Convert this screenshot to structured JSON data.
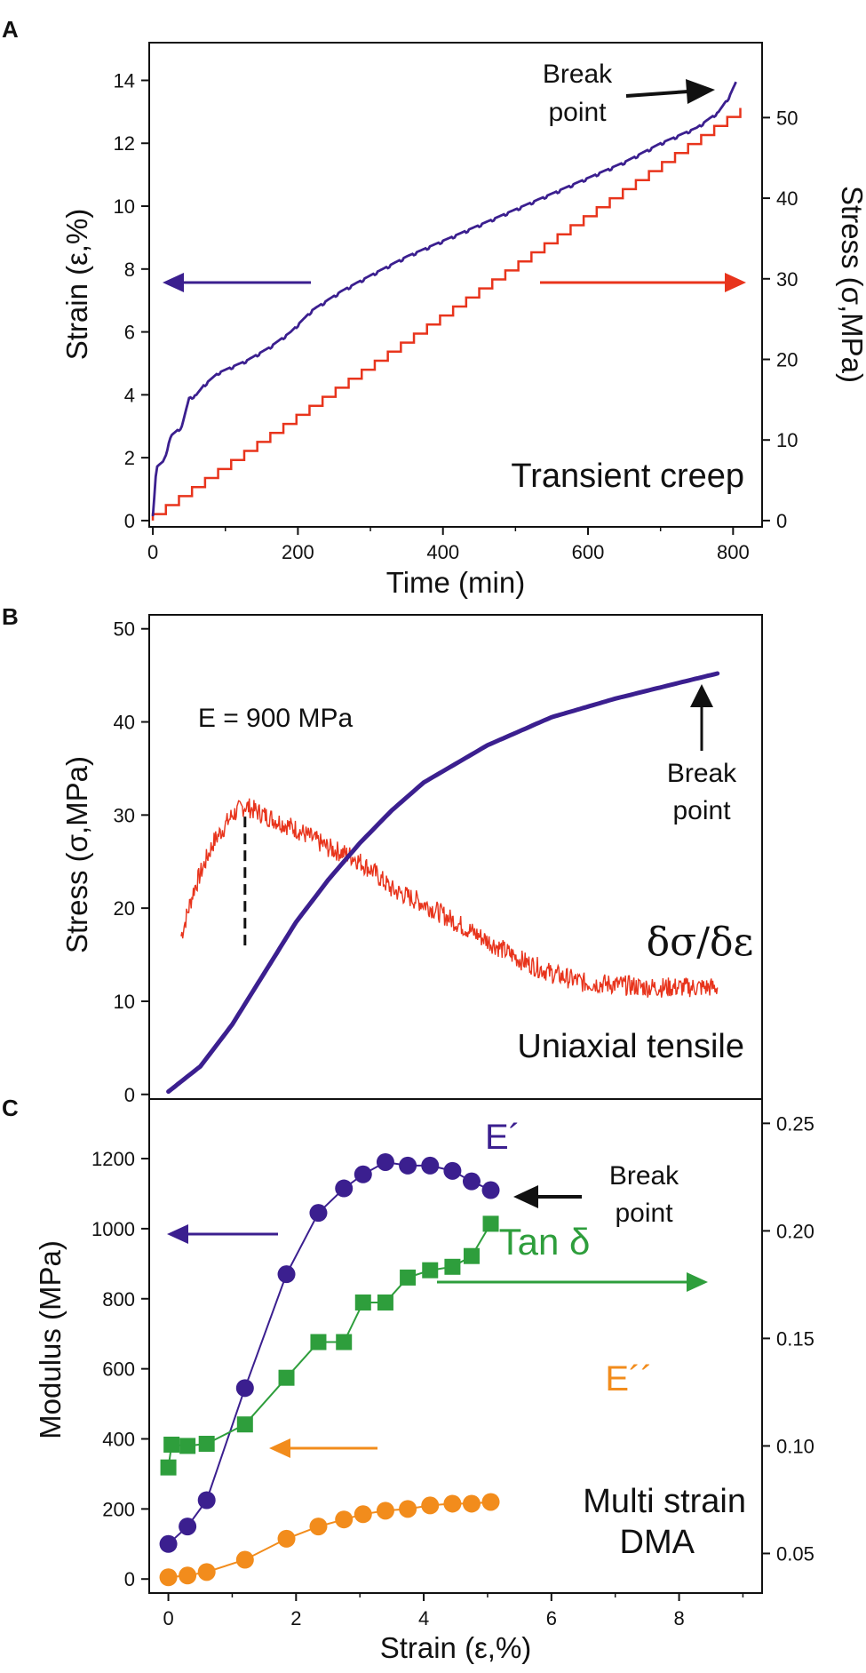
{
  "colors": {
    "blue": "#3b1f8f",
    "red": "#e8341c",
    "green": "#2e9e3c",
    "orange": "#f28c1c",
    "black": "#111111"
  },
  "panelA": {
    "letter": "A",
    "xlabel": "Time (min)",
    "ylabel_left": "Strain (ε,%)",
    "ylabel_right": "Stress (σ,MPa)",
    "label": "Transient creep",
    "break_line1": "Break",
    "break_line2": "point",
    "xlim": [
      -5,
      840
    ],
    "ylim_left": [
      -0.2,
      15.2
    ],
    "ylim_right": [
      -0.78,
      59.3
    ],
    "xticks": [
      0,
      200,
      400,
      600,
      800
    ],
    "yticks_left": [
      0,
      2,
      4,
      6,
      8,
      10,
      12,
      14
    ],
    "yticks_right": [
      0,
      10,
      20,
      30,
      40,
      50
    ],
    "strain_curve": [
      [
        0,
        0.2
      ],
      [
        5,
        1.7
      ],
      [
        15,
        1.9
      ],
      [
        25,
        2.7
      ],
      [
        40,
        3.0
      ],
      [
        50,
        3.9
      ],
      [
        60,
        4.0
      ],
      [
        70,
        4.3
      ],
      [
        90,
        4.7
      ],
      [
        110,
        4.9
      ],
      [
        130,
        5.1
      ],
      [
        160,
        5.5
      ],
      [
        190,
        6.0
      ],
      [
        220,
        6.7
      ],
      [
        260,
        7.3
      ],
      [
        300,
        7.8
      ],
      [
        350,
        8.4
      ],
      [
        400,
        8.9
      ],
      [
        450,
        9.4
      ],
      [
        500,
        9.9
      ],
      [
        550,
        10.4
      ],
      [
        600,
        10.9
      ],
      [
        650,
        11.4
      ],
      [
        700,
        12.0
      ],
      [
        750,
        12.5
      ],
      [
        780,
        13.0
      ],
      [
        795,
        13.5
      ],
      [
        805,
        14.0
      ]
    ],
    "stress_steps": {
      "t_start": 0,
      "t_step": 18,
      "n_steps": 45,
      "stress_start": 0.8,
      "stress_step": 1.12
    }
  },
  "panelB": {
    "letter": "B",
    "xlabel": "",
    "ylabel": "Stress (σ,MPa)",
    "label": "Uniaxial tensile",
    "modulus_label": "E = 900 MPa",
    "derivative_label": "δσ/δε",
    "break_line1": "Break",
    "break_line2": "point",
    "xlim": [
      -0.3,
      9.3
    ],
    "ylim": [
      -0.5,
      51.5
    ],
    "yticks": [
      0,
      10,
      20,
      30,
      40,
      50
    ],
    "stress_curve": [
      [
        0,
        0.3
      ],
      [
        0.5,
        3
      ],
      [
        1.0,
        7.5
      ],
      [
        1.5,
        13
      ],
      [
        2.0,
        18.5
      ],
      [
        2.5,
        23
      ],
      [
        3.0,
        27
      ],
      [
        3.5,
        30.5
      ],
      [
        4.0,
        33.5
      ],
      [
        5.0,
        37.5
      ],
      [
        6.0,
        40.5
      ],
      [
        7.0,
        42.5
      ],
      [
        8.0,
        44.2
      ],
      [
        8.6,
        45.2
      ]
    ],
    "derivative_curve": [
      [
        0.2,
        17
      ],
      [
        0.4,
        22
      ],
      [
        0.7,
        27
      ],
      [
        1.0,
        30
      ],
      [
        1.2,
        31
      ],
      [
        1.5,
        30
      ],
      [
        2.0,
        28.5
      ],
      [
        2.5,
        26.5
      ],
      [
        2.9,
        25.5
      ],
      [
        3.2,
        24
      ],
      [
        3.5,
        22
      ],
      [
        4.0,
        20.5
      ],
      [
        4.5,
        18.5
      ],
      [
        5.0,
        16.5
      ],
      [
        5.5,
        14.5
      ],
      [
        6.0,
        13
      ],
      [
        6.5,
        12
      ],
      [
        7.0,
        11.8
      ],
      [
        7.5,
        11.5
      ],
      [
        8.0,
        11.5
      ],
      [
        8.6,
        11.5
      ]
    ],
    "dashed_x": 1.2,
    "dashed_y": [
      16,
      30.5
    ]
  },
  "panelC": {
    "letter": "C",
    "xlabel": "Strain (ε,%)",
    "ylabel": "Modulus (MPa)",
    "label_line1": "Multi strain",
    "label_line2": "DMA",
    "storage_label": "E´",
    "loss_label": "E´´",
    "tan_label": "Tan δ",
    "break_line1": "Break",
    "break_line2": "point",
    "xlim": [
      -0.3,
      9.3
    ],
    "ylim_left": [
      -40,
      1370
    ],
    "ylim_right": [
      0.0316,
      0.2613
    ],
    "xticks": [
      0,
      2,
      4,
      6,
      8
    ],
    "yticks_left": [
      0,
      200,
      400,
      600,
      800,
      1000,
      1200
    ],
    "yticks_right": [
      0.05,
      0.1,
      0.15,
      0.2,
      0.25
    ],
    "right_tick_labels": [
      "0.05",
      "0.10",
      "0.15",
      "0.20",
      "0.25"
    ],
    "storage_modulus": [
      [
        0,
        100
      ],
      [
        0.3,
        150
      ],
      [
        0.6,
        225
      ],
      [
        1.2,
        545
      ],
      [
        1.85,
        870
      ],
      [
        2.35,
        1045
      ],
      [
        2.75,
        1115
      ],
      [
        3.05,
        1155
      ],
      [
        3.4,
        1190
      ],
      [
        3.75,
        1180
      ],
      [
        4.1,
        1180
      ],
      [
        4.45,
        1165
      ],
      [
        4.75,
        1135
      ],
      [
        5.05,
        1110
      ]
    ],
    "loss_modulus": [
      [
        0,
        5
      ],
      [
        0.3,
        10
      ],
      [
        0.6,
        20
      ],
      [
        1.2,
        55
      ],
      [
        1.85,
        115
      ],
      [
        2.35,
        150
      ],
      [
        2.75,
        170
      ],
      [
        3.05,
        185
      ],
      [
        3.4,
        195
      ],
      [
        3.75,
        200
      ],
      [
        4.1,
        210
      ],
      [
        4.45,
        215
      ],
      [
        4.75,
        215
      ],
      [
        5.05,
        220
      ]
    ],
    "tan_delta": [
      [
        0,
        0.09
      ],
      [
        0.05,
        0.1006
      ],
      [
        0.3,
        0.1
      ],
      [
        0.6,
        0.101
      ],
      [
        1.2,
        0.11
      ],
      [
        1.85,
        0.1317
      ],
      [
        2.35,
        0.1483
      ],
      [
        2.75,
        0.1483
      ],
      [
        3.05,
        0.1667
      ],
      [
        3.4,
        0.1667
      ],
      [
        3.75,
        0.1783
      ],
      [
        4.1,
        0.1817
      ],
      [
        4.45,
        0.1833
      ],
      [
        4.75,
        0.1883
      ],
      [
        5.05,
        0.2033
      ]
    ]
  }
}
